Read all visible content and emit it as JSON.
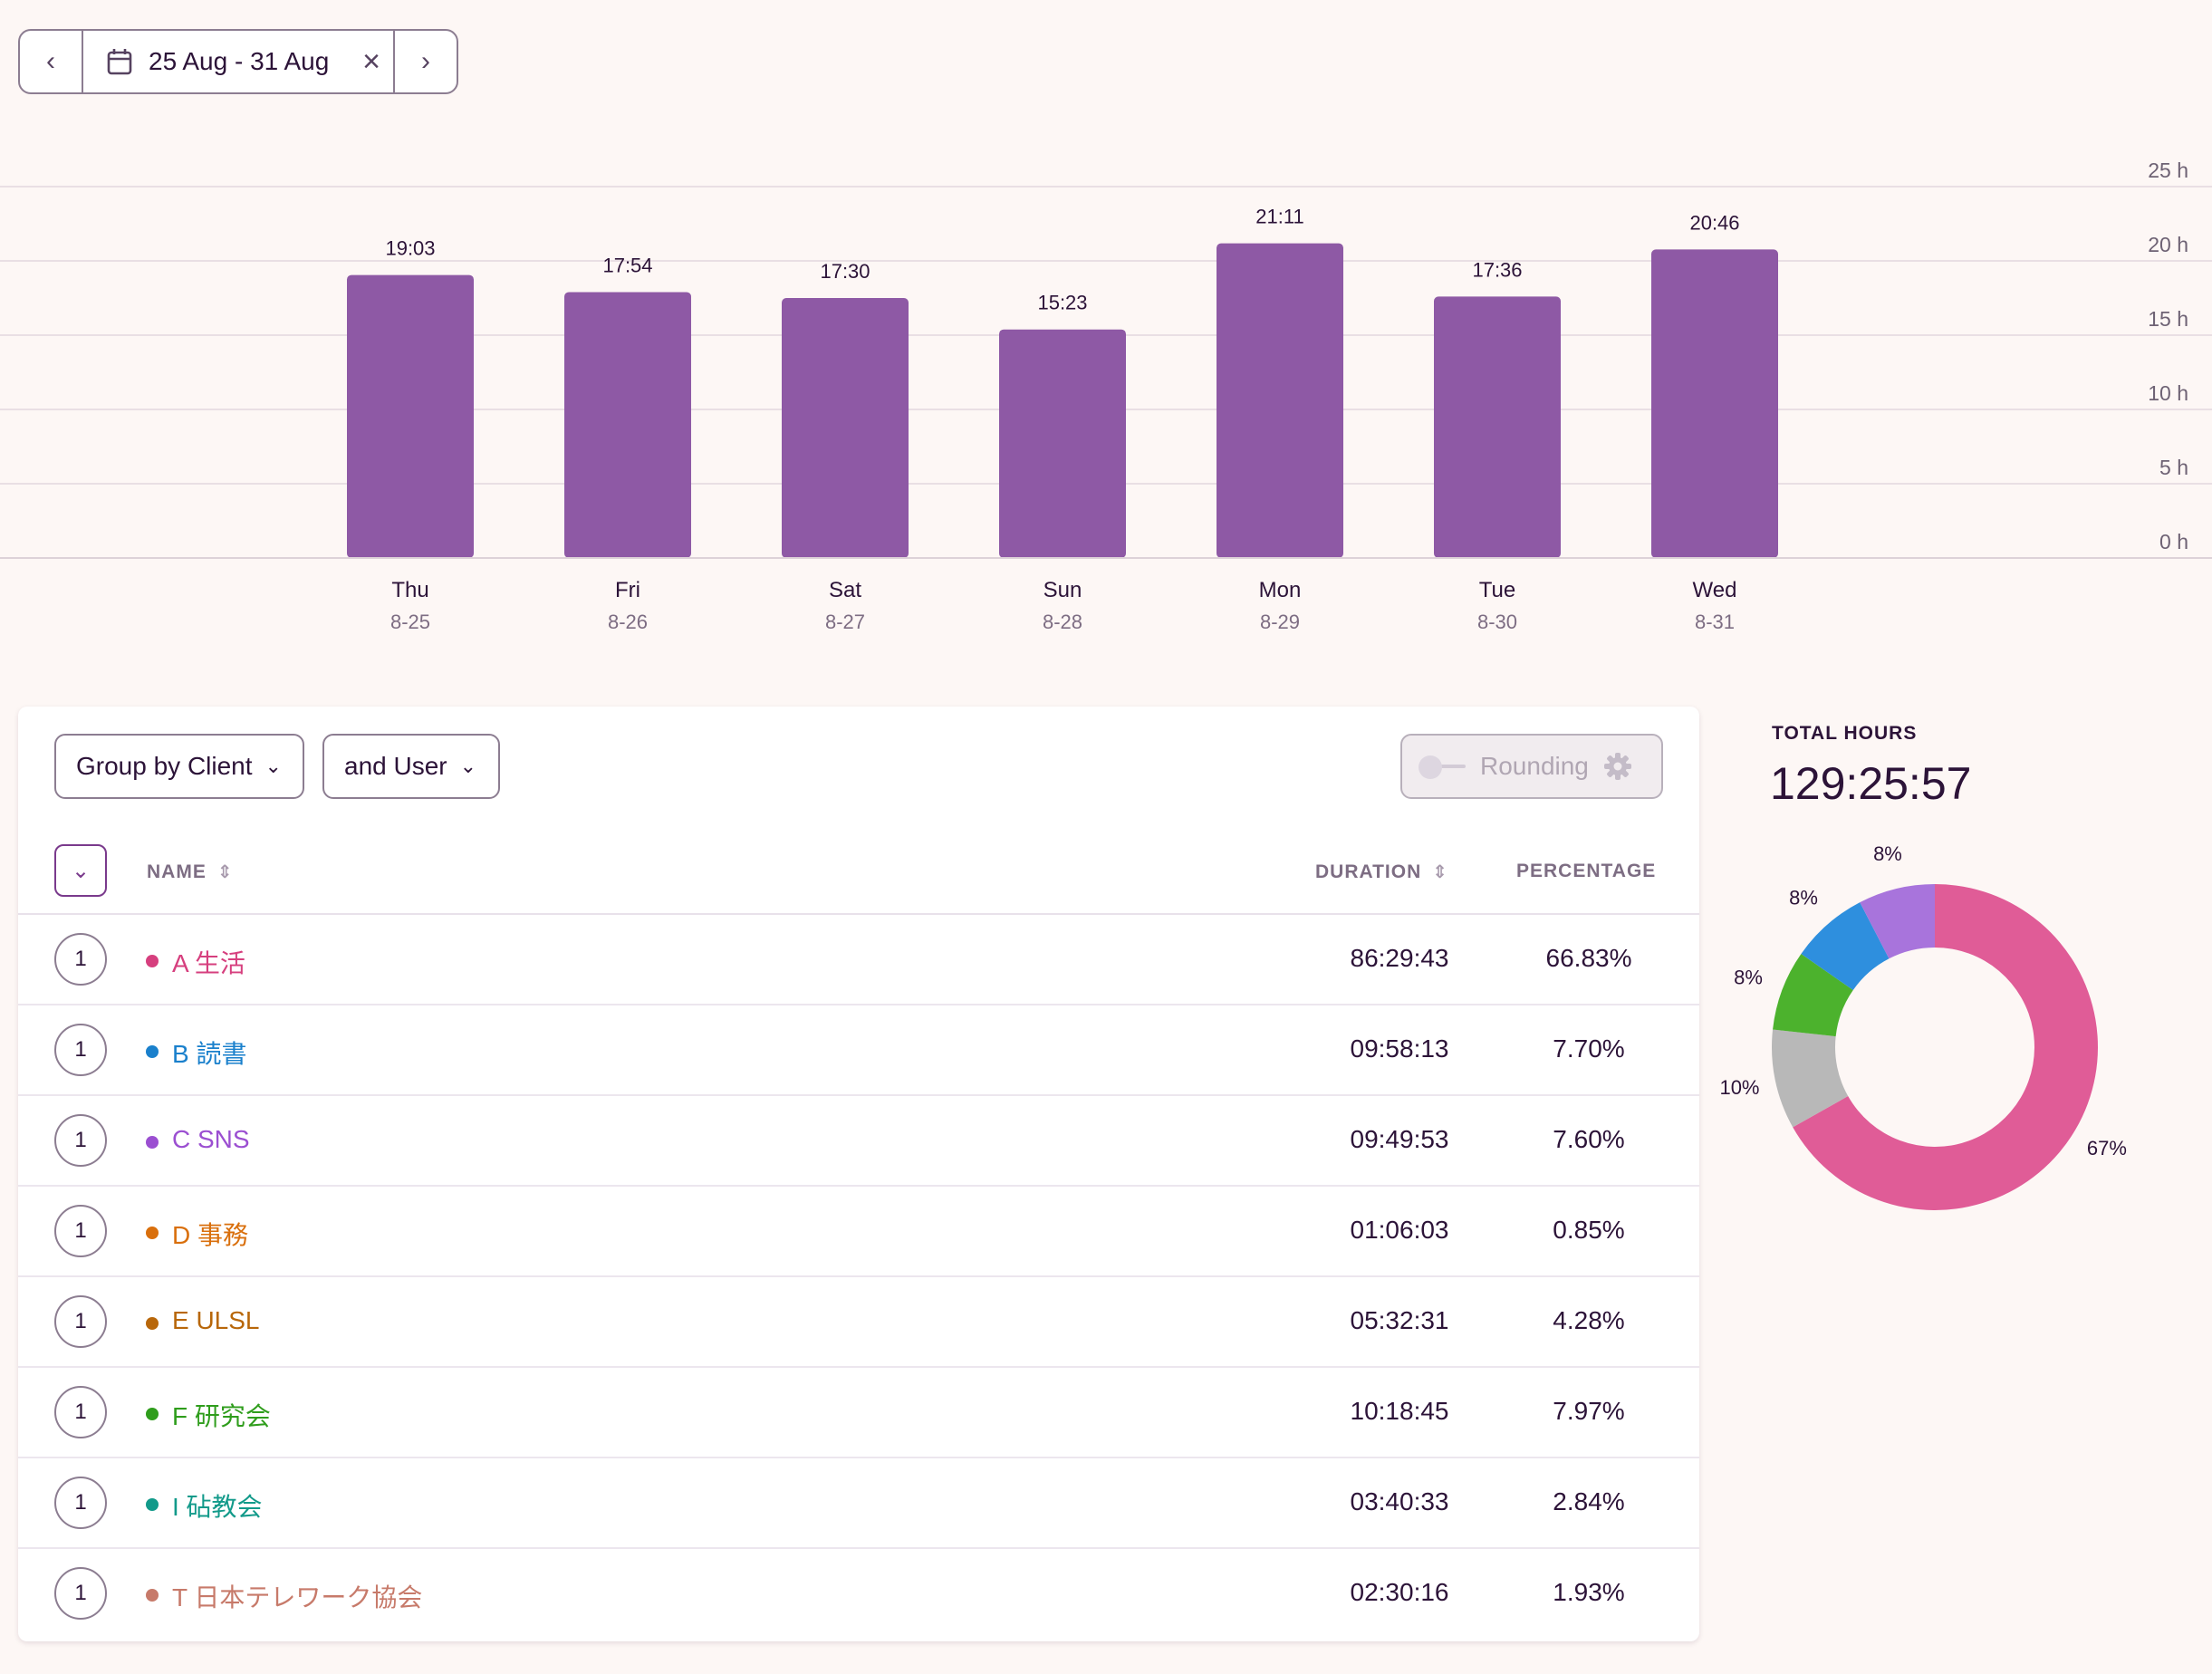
{
  "date_picker": {
    "range_label": "25 Aug - 31 Aug"
  },
  "chart_data": {
    "type": "bar",
    "categories": [
      "Thu",
      "Fri",
      "Sat",
      "Sun",
      "Mon",
      "Tue",
      "Wed"
    ],
    "sublabels": [
      "8-25",
      "8-26",
      "8-27",
      "8-28",
      "8-29",
      "8-30",
      "8-31"
    ],
    "values": [
      19.05,
      17.9,
      17.5,
      15.383,
      21.183,
      17.6,
      20.767
    ],
    "data_labels": [
      "19:03",
      "17:54",
      "17:30",
      "15:23",
      "21:11",
      "17:36",
      "20:46"
    ],
    "y_ticks": [
      "0 h",
      "5 h",
      "10 h",
      "15 h",
      "20 h",
      "25 h"
    ],
    "ylim": [
      0,
      25
    ],
    "bar_color": "#8e59a5",
    "grid": true
  },
  "controls": {
    "group_by": "Group by Client",
    "sub_group": "and User",
    "rounding_label": "Rounding"
  },
  "table": {
    "headers": {
      "name": "NAME",
      "duration": "DURATION",
      "percentage": "PERCENTAGE"
    },
    "rows": [
      {
        "count": "1",
        "name": "A 生活",
        "duration": "86:29:43",
        "percentage": "66.83%",
        "color": "#d63f7e"
      },
      {
        "count": "1",
        "name": "B 読書",
        "duration": "09:58:13",
        "percentage": "7.70%",
        "color": "#1a80cc"
      },
      {
        "count": "1",
        "name": "C SNS",
        "duration": "09:49:53",
        "percentage": "7.60%",
        "color": "#9b4fd1"
      },
      {
        "count": "1",
        "name": "D 事務",
        "duration": "01:06:03",
        "percentage": "0.85%",
        "color": "#d96f0c"
      },
      {
        "count": "1",
        "name": "E ULSL",
        "duration": "05:32:31",
        "percentage": "4.28%",
        "color": "#b8670a"
      },
      {
        "count": "1",
        "name": "F 研究会",
        "duration": "10:18:45",
        "percentage": "7.97%",
        "color": "#2f9d1c"
      },
      {
        "count": "1",
        "name": "I 砧教会",
        "duration": "03:40:33",
        "percentage": "2.84%",
        "color": "#129a8a"
      },
      {
        "count": "1",
        "name": "T 日本テレワーク協会",
        "duration": "02:30:16",
        "percentage": "1.93%",
        "color": "#c77a6a"
      }
    ]
  },
  "total": {
    "label": "TOTAL HOURS",
    "value": "129:25:57"
  },
  "donut": {
    "segments": [
      {
        "label": "67%",
        "value": 66.83,
        "color": "#e05c97"
      },
      {
        "label": "10%",
        "value": 9.9,
        "color": "#b8b8b8"
      },
      {
        "label": "8%",
        "value": 7.97,
        "color": "#4cb22d"
      },
      {
        "label": "8%",
        "value": 7.7,
        "color": "#2e8fde"
      },
      {
        "label": "8%",
        "value": 7.6,
        "color": "#a874dc"
      }
    ]
  }
}
